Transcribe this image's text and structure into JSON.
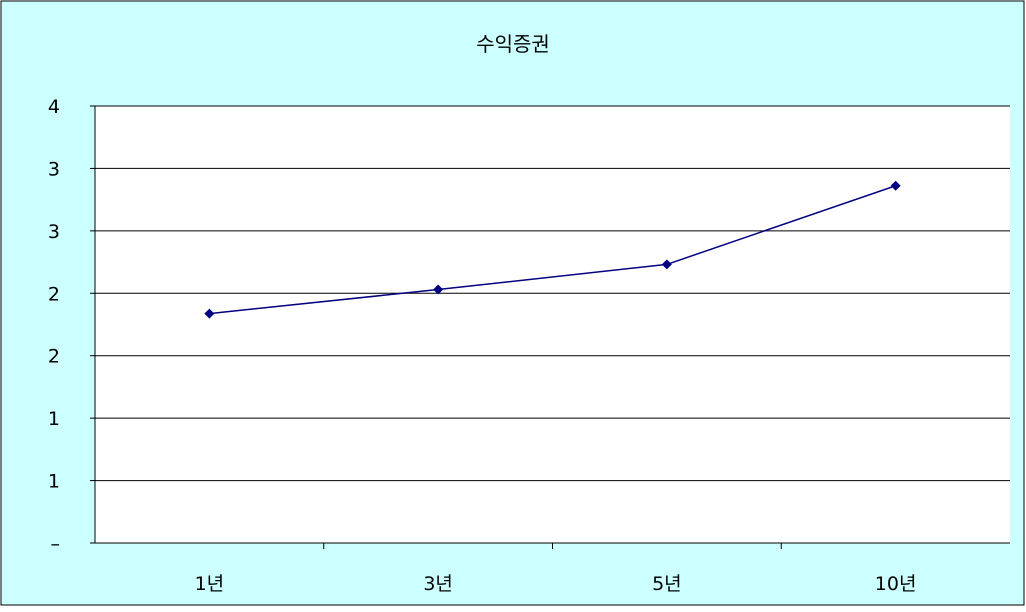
{
  "chart_data": {
    "type": "line",
    "title": "수익증권",
    "categories": [
      "1년",
      "3년",
      "5년",
      "10년"
    ],
    "series": [
      {
        "values": [
          2.1,
          2.32,
          2.55,
          3.27
        ],
        "color": "#000080",
        "marker": "diamond"
      }
    ],
    "ylim": [
      0,
      4
    ],
    "y_tick_labels": [
      "–",
      "1",
      "1",
      "2",
      "2",
      "3",
      "3",
      "4"
    ],
    "grid": true,
    "colors": {
      "background": "#ccffff",
      "plot_background": "#ffffff",
      "line": "#000080",
      "border": "#000000"
    }
  }
}
